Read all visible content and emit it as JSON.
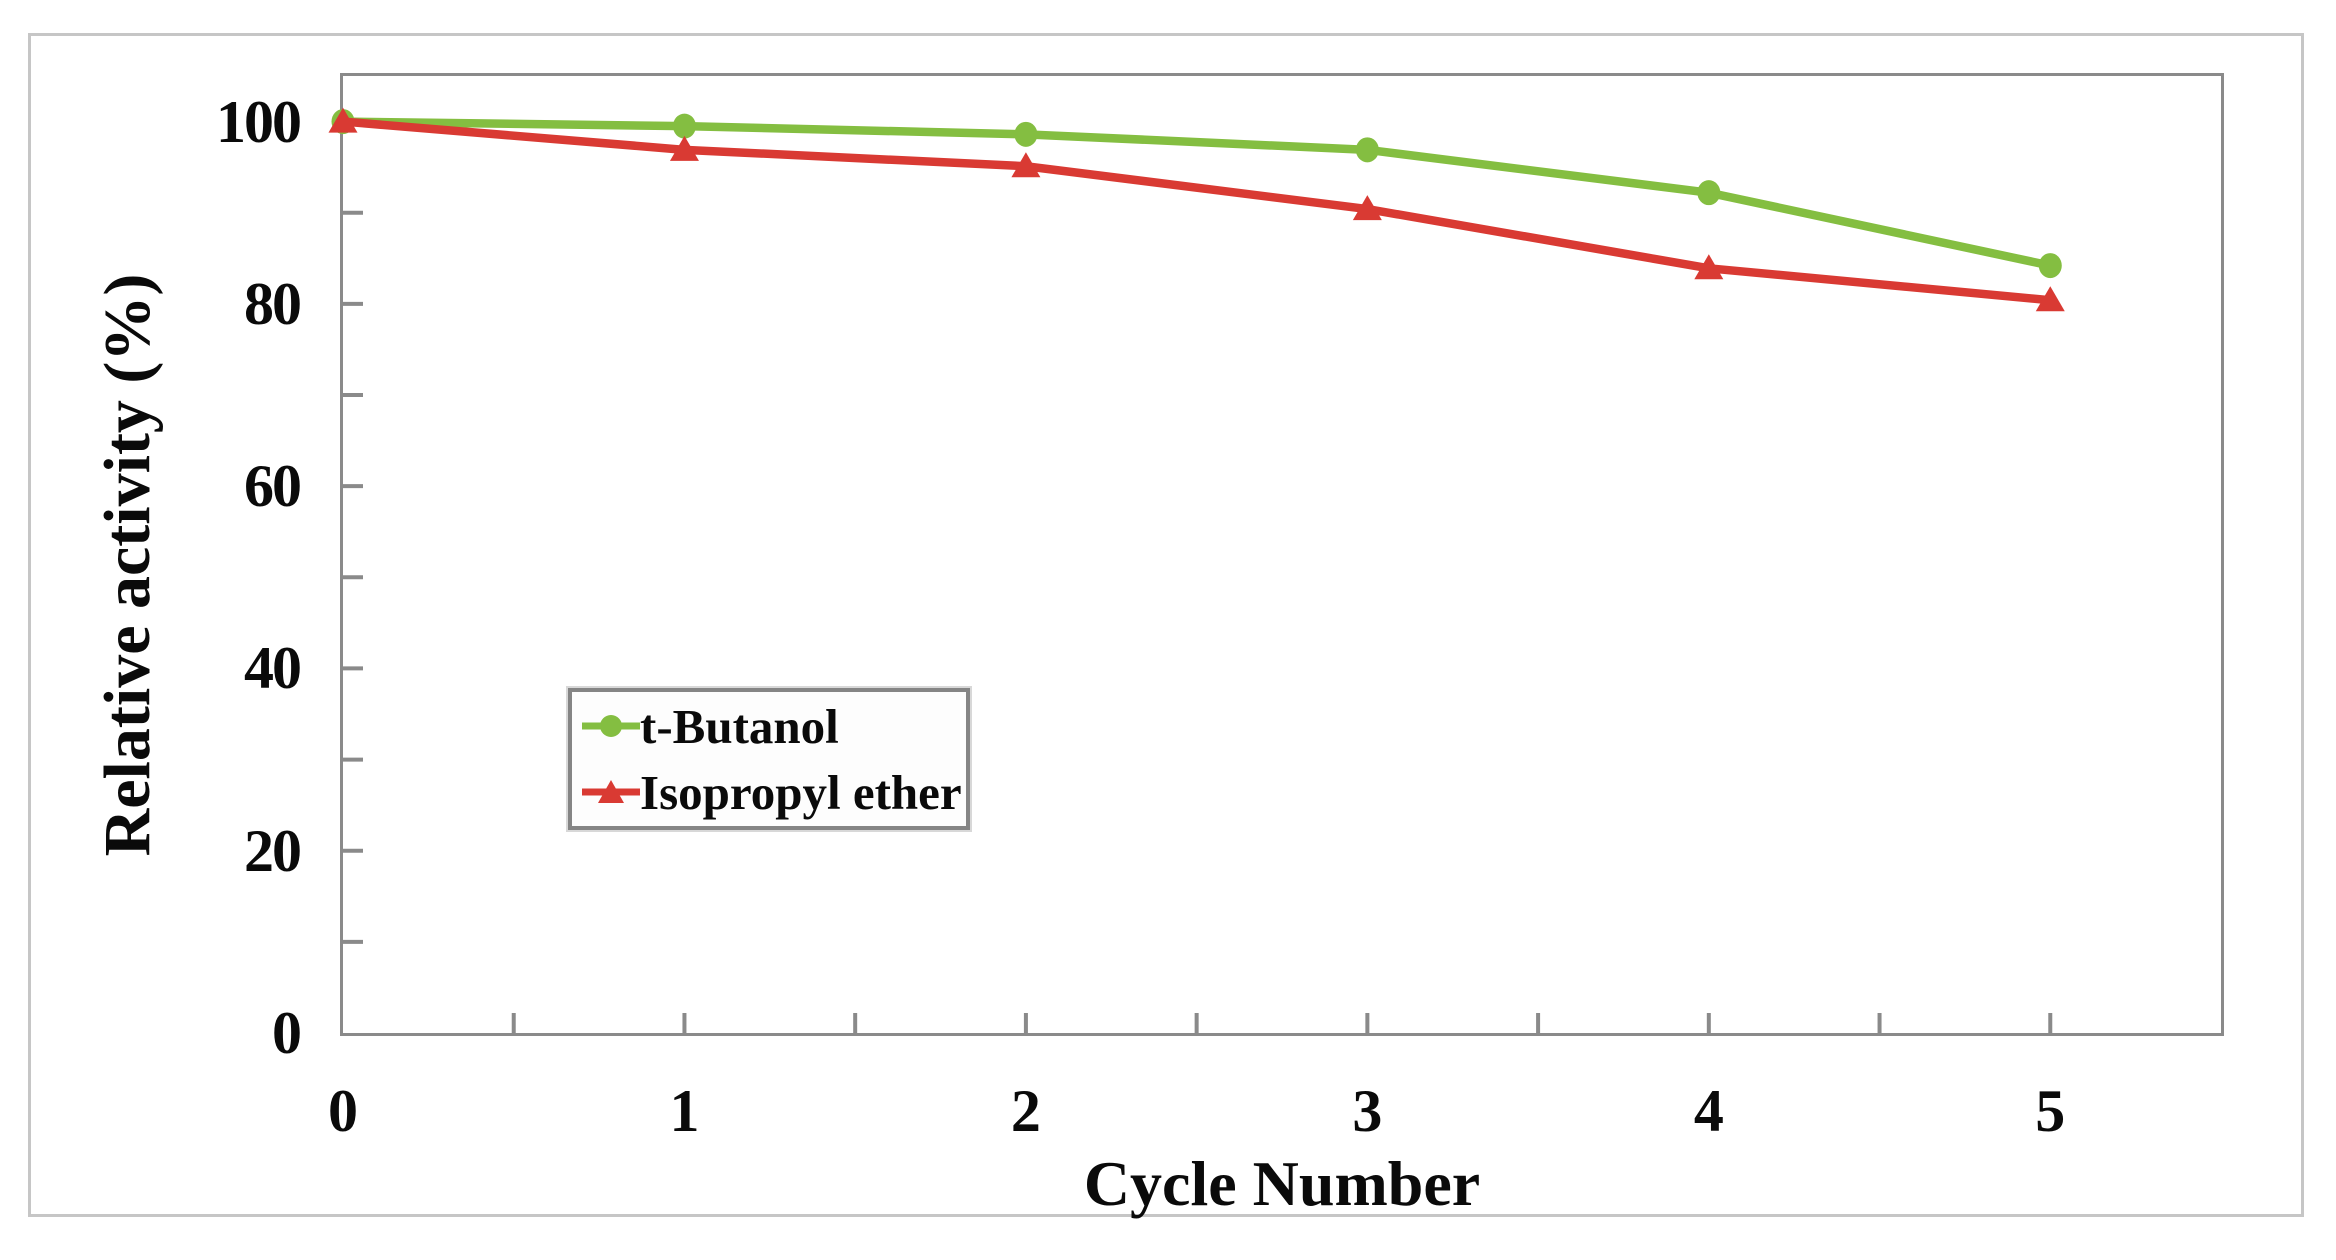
{
  "figure": {
    "background": "#ffffff",
    "frame_color": "#c6c6c6"
  },
  "chart_data": {
    "type": "line",
    "title": "",
    "xlabel": "Cycle Number",
    "ylabel": "Relative activity (%)",
    "x": [
      0,
      1,
      2,
      3,
      4,
      5
    ],
    "xlim": [
      0,
      5.5
    ],
    "ylim": [
      0,
      105
    ],
    "x_tick_labels": [
      "0",
      "1",
      "2",
      "3",
      "4",
      "5"
    ],
    "y_tick_labels": [
      "0",
      "20",
      "40",
      "60",
      "80",
      "100"
    ],
    "x_minor_step": 0.5,
    "y_minor_step": 10,
    "grid": false,
    "axis_color": "#8a8a8a",
    "legend_position": "inside-left-center",
    "series": [
      {
        "name": "t-Butanol",
        "marker": "circle",
        "color": "#84be41",
        "values": [
          100,
          99.5,
          98.6,
          96.9,
          92.2,
          84.2
        ]
      },
      {
        "name": "Isopropyl ether",
        "marker": "triangle",
        "color": "#d93a33",
        "values": [
          100,
          96.9,
          95.1,
          90.4,
          83.9,
          80.4
        ]
      }
    ]
  }
}
